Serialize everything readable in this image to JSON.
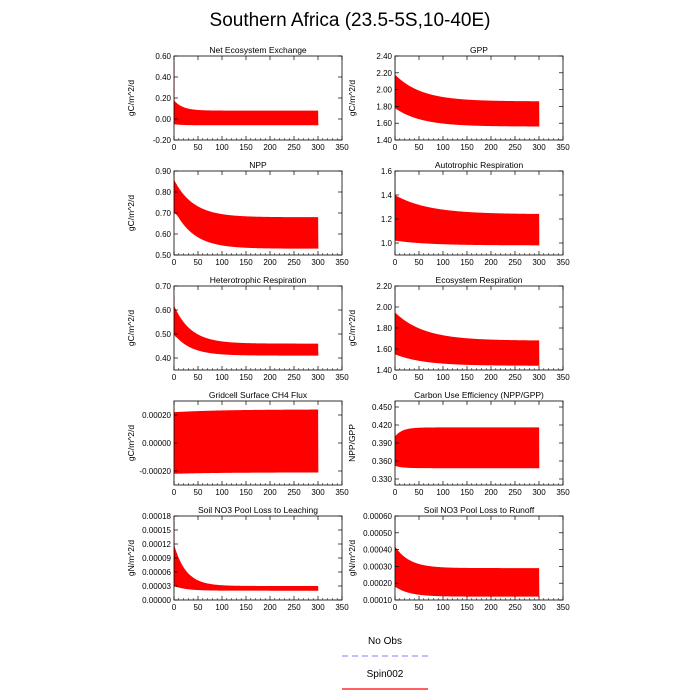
{
  "title": "Southern Africa (23.5-5S,10-40E)",
  "legend": {
    "entries": [
      {
        "label": "No Obs",
        "color": "#9999ff",
        "dash": true
      },
      {
        "label": "Spin002",
        "color": "#ff0000",
        "dash": false
      }
    ]
  },
  "chart_data": [
    {
      "type": "line",
      "title": "Net Ecosystem Exchange",
      "ylabel": "gC/m^2/d",
      "xlim": [
        0,
        350
      ],
      "xticks": [
        0,
        50,
        100,
        150,
        200,
        250,
        300,
        350
      ],
      "ylim": [
        -0.2,
        0.6
      ],
      "yticks": [
        "-0.20",
        "0.00",
        "0.20",
        "0.40",
        "0.60"
      ],
      "series": [
        {
          "name": "Spin002",
          "color": "#ff0000",
          "initial_peak": 0.55,
          "start_high": 0.18,
          "start_low": -0.05,
          "end_high": 0.08,
          "end_low": -0.06,
          "mean_end": -0.01,
          "decay": 18,
          "cycles": 300
        }
      ]
    },
    {
      "type": "line",
      "title": "GPP",
      "ylabel": "gC/m^2/d",
      "xlim": [
        0,
        350
      ],
      "xticks": [
        0,
        50,
        100,
        150,
        200,
        250,
        300,
        350
      ],
      "ylim": [
        1.4,
        2.4
      ],
      "yticks": [
        "1.40",
        "1.60",
        "1.80",
        "2.00",
        "2.20",
        "2.40"
      ],
      "series": [
        {
          "name": "Spin002",
          "color": "#ff0000",
          "initial_peak": 2.38,
          "start_high": 2.18,
          "start_low": 1.78,
          "end_high": 1.86,
          "end_low": 1.56,
          "mean_end": 1.8,
          "decay": 55,
          "cycles": 300
        }
      ]
    },
    {
      "type": "line",
      "title": "NPP",
      "ylabel": "gC/m^2/d",
      "xlim": [
        0,
        350
      ],
      "xticks": [
        0,
        50,
        100,
        150,
        200,
        250,
        300,
        350
      ],
      "ylim": [
        0.5,
        0.9
      ],
      "yticks": [
        "0.50",
        "0.60",
        "0.70",
        "0.80",
        "0.90"
      ],
      "series": [
        {
          "name": "Spin002",
          "color": "#ff0000",
          "initial_peak": 0.88,
          "start_high": 0.86,
          "start_low": 0.72,
          "end_high": 0.68,
          "end_low": 0.53,
          "mean_end": 0.62,
          "decay": 40,
          "cycles": 300
        }
      ]
    },
    {
      "type": "line",
      "title": "Autotrophic Respiration",
      "ylabel": "",
      "xlim": [
        0,
        350
      ],
      "xticks": [
        0,
        50,
        100,
        150,
        200,
        250,
        300,
        350
      ],
      "ylim": [
        0.9,
        1.6
      ],
      "yticks": [
        "1.0",
        "1.2",
        "1.4",
        "1.6"
      ],
      "series": [
        {
          "name": "Spin002",
          "color": "#ff0000",
          "initial_peak": 1.58,
          "start_high": 1.4,
          "start_low": 1.02,
          "end_high": 1.24,
          "end_low": 0.98,
          "mean_end": 1.19,
          "decay": 70,
          "cycles": 300
        }
      ]
    },
    {
      "type": "line",
      "title": "Heterotrophic Respiration",
      "ylabel": "gC/m^2/d",
      "xlim": [
        0,
        350
      ],
      "xticks": [
        0,
        50,
        100,
        150,
        200,
        250,
        300,
        350
      ],
      "ylim": [
        0.35,
        0.7
      ],
      "yticks": [
        "0.40",
        "0.50",
        "0.60",
        "0.70"
      ],
      "series": [
        {
          "name": "Spin002",
          "color": "#ff0000",
          "initial_peak": 0.66,
          "start_high": 0.62,
          "start_low": 0.5,
          "end_high": 0.46,
          "end_low": 0.41,
          "mean_end": 0.44,
          "decay": 35,
          "cycles": 300
        }
      ]
    },
    {
      "type": "line",
      "title": "Ecosystem Respiration",
      "ylabel": "gC/m^2/d",
      "xlim": [
        0,
        350
      ],
      "xticks": [
        0,
        50,
        100,
        150,
        200,
        250,
        300,
        350
      ],
      "ylim": [
        1.4,
        2.2
      ],
      "yticks": [
        "1.40",
        "1.60",
        "1.80",
        "2.00",
        "2.20"
      ],
      "series": [
        {
          "name": "Spin002",
          "color": "#ff0000",
          "initial_peak": 2.15,
          "start_high": 1.95,
          "start_low": 1.55,
          "end_high": 1.68,
          "end_low": 1.44,
          "mean_end": 1.63,
          "decay": 60,
          "cycles": 300
        }
      ]
    },
    {
      "type": "line",
      "title": "Gridcell Surface CH4 Flux",
      "ylabel": "gC/m^2/d",
      "xlim": [
        0,
        350
      ],
      "xticks": [
        0,
        50,
        100,
        150,
        200,
        250,
        300,
        350
      ],
      "ylim": [
        -0.0003,
        0.0003
      ],
      "yticks": [
        "-0.00020",
        "0.00000",
        "0.00020"
      ],
      "series": [
        {
          "name": "Spin002",
          "color": "#ff0000",
          "initial_peak": 0.00025,
          "start_high": 0.00022,
          "start_low": -0.00022,
          "end_high": 0.00024,
          "end_low": -0.00021,
          "mean_end": 1e-05,
          "decay": 100,
          "cycles": 300
        }
      ]
    },
    {
      "type": "line",
      "title": "Carbon Use Efficiency (NPP/GPP)",
      "ylabel": "NPP/GPP",
      "xlim": [
        0,
        350
      ],
      "xticks": [
        0,
        50,
        100,
        150,
        200,
        250,
        300,
        350
      ],
      "ylim": [
        0.32,
        0.46
      ],
      "yticks": [
        "0.330",
        "0.360",
        "0.390",
        "0.420",
        "0.450"
      ],
      "series": [
        {
          "name": "Spin002",
          "color": "#ff0000",
          "initial_peak": 0.452,
          "start_high": 0.4,
          "start_low": 0.352,
          "end_high": 0.416,
          "end_low": 0.348,
          "mean_end": 0.36,
          "decay": 15,
          "cycles": 300
        }
      ]
    },
    {
      "type": "line",
      "title": "Soil NO3 Pool Loss to Leaching",
      "ylabel": "gN/m^2/d",
      "xlim": [
        0,
        350
      ],
      "xticks": [
        0,
        50,
        100,
        150,
        200,
        250,
        300,
        350
      ],
      "ylim": [
        0,
        0.00018
      ],
      "yticks": [
        "0.00000",
        "0.00003",
        "0.00006",
        "0.00009",
        "0.00012",
        "0.00015",
        "0.00018"
      ],
      "series": [
        {
          "name": "Spin002",
          "color": "#ff0000",
          "initial_peak": 0.00017,
          "start_high": 0.00012,
          "start_low": 3e-05,
          "end_high": 3e-05,
          "end_low": 2e-05,
          "mean_end": 2.5e-05,
          "decay": 25,
          "cycles": 300
        }
      ]
    },
    {
      "type": "line",
      "title": "Soil NO3 Pool Loss to Runoff",
      "ylabel": "gN/m^2/d",
      "xlim": [
        0,
        350
      ],
      "xticks": [
        0,
        50,
        100,
        150,
        200,
        250,
        300,
        350
      ],
      "ylim": [
        0.0001,
        0.0006
      ],
      "yticks": [
        "0.00010",
        "0.00020",
        "0.00030",
        "0.00040",
        "0.00050",
        "0.00060"
      ],
      "series": [
        {
          "name": "Spin002",
          "color": "#ff0000",
          "initial_peak": 0.00059,
          "start_high": 0.00042,
          "start_low": 0.00018,
          "end_high": 0.00029,
          "end_low": 0.00012,
          "mean_end": 0.00018,
          "decay": 30,
          "cycles": 300
        }
      ]
    }
  ]
}
